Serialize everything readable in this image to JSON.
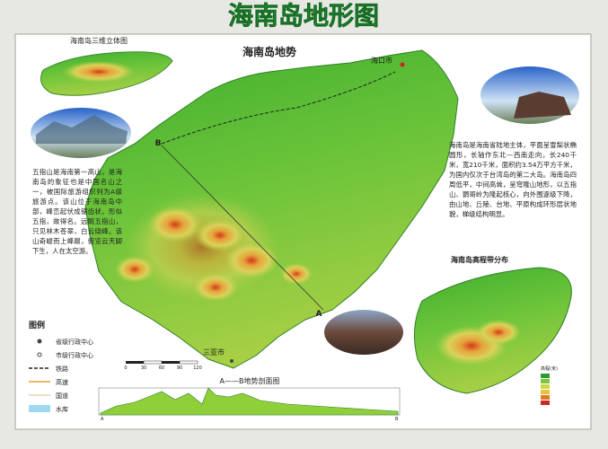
{
  "header": {
    "title": "海南岛地形图"
  },
  "main_map": {
    "title": "海南岛地势",
    "labels": {
      "haikou": "海口市",
      "sanya": "三亚市",
      "point_a": "A",
      "point_b": "B"
    },
    "scale": [
      "0",
      "30",
      "60",
      "90",
      "120"
    ]
  },
  "inset_3d": {
    "title": "海南岛三维立体图"
  },
  "left_text": "五指山是海南第一高山，是海南岛的象征也是中国名山之一，被国际旅游组织列为A级旅游点。该山位于海南岛中部，峰峦起伏成锯齿状，形似五指，故得名。远眺五指山，只见林木苍翠，白云绕峰。该山奇峻而上峰巅，俯览云天脚下生，人在太空游。",
  "right_text": "海南岛是海南省陆地主体，平面呈雪梨状椭圆形，长轴作东北—西南走向，长240千米，宽210千米，面积约3.54万平方千米，为国内仅次于台湾岛的第二大岛。海南岛四周低平，中间高耸，呈穹隆山地形，以五指山、鹦哥岭为隆起核心，向外围逐级下降，由山地、丘陵、台地、平原构成环形层状地貌，梯级结构明显。",
  "elevation_inset": {
    "title": "海南岛高程带分布",
    "legend_title": "高程(米)"
  },
  "legend": {
    "title": "图例",
    "items": [
      "省级行政中心",
      "市级行政中心",
      "铁路",
      "高速",
      "国道",
      "水库"
    ]
  },
  "profile": {
    "title": "A——B地势剖面图",
    "start": "A",
    "end": "B"
  }
}
